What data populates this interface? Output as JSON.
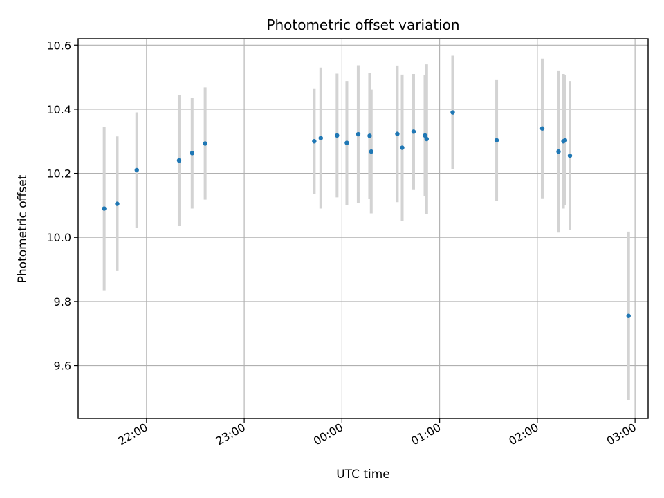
{
  "chart_data": {
    "type": "scatter",
    "title": "Photometric offset variation",
    "xlabel": "UTC time",
    "ylabel": "Photometric offset",
    "x_ticks": [
      "22:00",
      "23:00",
      "00:00",
      "01:00",
      "02:00",
      "03:00"
    ],
    "x_tick_values": [
      "21:59:59",
      "22:59:59",
      "23:59:59",
      "00:59:59",
      "01:59:59",
      "02:59:59"
    ],
    "xlim": [
      "21:18",
      "03:08"
    ],
    "y_ticks": [
      "9.6",
      "9.8",
      "10.0",
      "10.2",
      "10.4",
      "10.6"
    ],
    "ylim": [
      9.435,
      10.62
    ],
    "grid": true,
    "marker_color": "#1f77b4",
    "errorbar_color": "#d3d3d3",
    "points": [
      {
        "time": "21:34",
        "y": 10.09,
        "err": 0.255
      },
      {
        "time": "21:42",
        "y": 10.105,
        "err": 0.21
      },
      {
        "time": "21:54",
        "y": 10.21,
        "err": 0.18
      },
      {
        "time": "22:20",
        "y": 10.24,
        "err": 0.205
      },
      {
        "time": "22:28",
        "y": 10.263,
        "err": 0.173
      },
      {
        "time": "22:36",
        "y": 10.293,
        "err": 0.175
      },
      {
        "time": "23:43",
        "y": 10.3,
        "err": 0.165
      },
      {
        "time": "23:47",
        "y": 10.31,
        "err": 0.22
      },
      {
        "time": "23:57",
        "y": 10.318,
        "err": 0.193
      },
      {
        "time": "00:03",
        "y": 10.295,
        "err": 0.193
      },
      {
        "time": "00:10",
        "y": 10.322,
        "err": 0.215
      },
      {
        "time": "00:17",
        "y": 10.317,
        "err": 0.197
      },
      {
        "time": "00:18",
        "y": 10.268,
        "err": 0.193
      },
      {
        "time": "00:34",
        "y": 10.323,
        "err": 0.213
      },
      {
        "time": "00:37",
        "y": 10.28,
        "err": 0.228
      },
      {
        "time": "00:44",
        "y": 10.33,
        "err": 0.18
      },
      {
        "time": "00:51",
        "y": 10.318,
        "err": 0.188
      },
      {
        "time": "00:52",
        "y": 10.307,
        "err": 0.233
      },
      {
        "time": "01:08",
        "y": 10.39,
        "err": 0.177
      },
      {
        "time": "01:35",
        "y": 10.303,
        "err": 0.19
      },
      {
        "time": "02:03",
        "y": 10.34,
        "err": 0.218
      },
      {
        "time": "02:13",
        "y": 10.268,
        "err": 0.253
      },
      {
        "time": "02:16",
        "y": 10.3,
        "err": 0.21
      },
      {
        "time": "02:17",
        "y": 10.303,
        "err": 0.203
      },
      {
        "time": "02:20",
        "y": 10.255,
        "err": 0.233
      },
      {
        "time": "02:56",
        "y": 9.755,
        "err": 0.263
      }
    ]
  }
}
